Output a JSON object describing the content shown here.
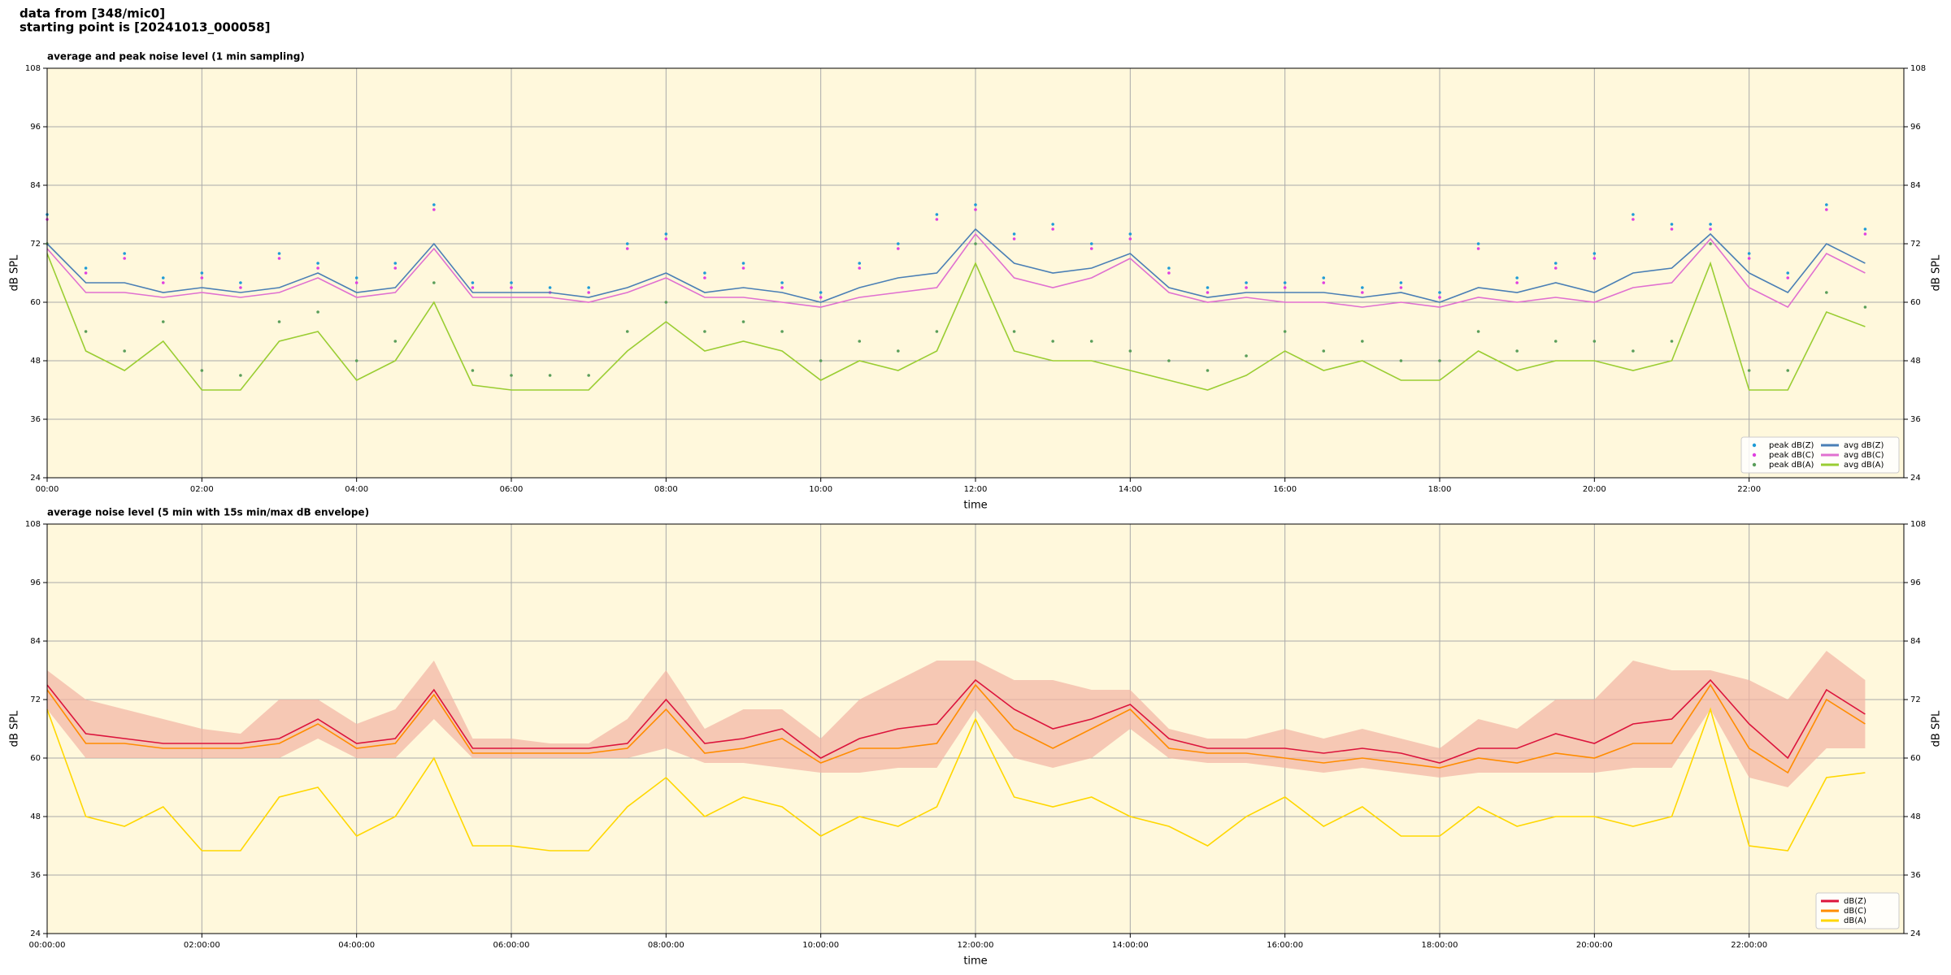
{
  "header": {
    "title_lines": [
      "data from [348/mic0]",
      "starting point is [20241013_000058]"
    ]
  },
  "chart_data": [
    {
      "type": "line",
      "title": "average and peak noise level (1 min sampling)",
      "xlabel": "time",
      "ylabel": "dB SPL",
      "xlim": [
        0,
        24
      ],
      "ylim": [
        24,
        108
      ],
      "yticks": [
        24,
        36,
        48,
        60,
        72,
        84,
        96,
        108
      ],
      "grid": true,
      "legend": "lower right",
      "background": "#fff8dc",
      "xticks": [
        {
          "value": 0,
          "label": "00:00"
        },
        {
          "value": 2,
          "label": "02:00"
        },
        {
          "value": 4,
          "label": "04:00"
        },
        {
          "value": 6,
          "label": "06:00"
        },
        {
          "value": 8,
          "label": "08:00"
        },
        {
          "value": 10,
          "label": "10:00"
        },
        {
          "value": 12,
          "label": "12:00"
        },
        {
          "value": 14,
          "label": "14:00"
        },
        {
          "value": 16,
          "label": "16:00"
        },
        {
          "value": 18,
          "label": "18:00"
        },
        {
          "value": 20,
          "label": "20:00"
        },
        {
          "value": 22,
          "label": "22:00"
        }
      ],
      "x": [
        0,
        0.5,
        1,
        1.5,
        2,
        2.5,
        3,
        3.5,
        4,
        4.5,
        5,
        5.5,
        6,
        6.5,
        7,
        7.5,
        8,
        8.5,
        9,
        9.5,
        10,
        10.5,
        11,
        11.5,
        12,
        12.5,
        13,
        13.5,
        14,
        14.5,
        15,
        15.5,
        16,
        16.5,
        17,
        17.5,
        18,
        18.5,
        19,
        19.5,
        20,
        20.5,
        21,
        21.5,
        22,
        22.5,
        23,
        23.5
      ],
      "series": [
        {
          "name": "peak dB(Z)",
          "kind": "scatter",
          "color": "#1f9bd6",
          "values": [
            78,
            67,
            70,
            65,
            66,
            64,
            70,
            68,
            65,
            68,
            80,
            64,
            64,
            63,
            63,
            72,
            74,
            66,
            68,
            64,
            62,
            68,
            72,
            78,
            80,
            74,
            76,
            72,
            74,
            67,
            63,
            64,
            64,
            65,
            63,
            64,
            62,
            72,
            65,
            68,
            70,
            78,
            76,
            76,
            70,
            66,
            80,
            75
          ]
        },
        {
          "name": "peak dB(C)",
          "kind": "scatter",
          "color": "#e040e0",
          "values": [
            77,
            66,
            69,
            64,
            65,
            63,
            69,
            67,
            64,
            67,
            79,
            63,
            63,
            62,
            62,
            71,
            73,
            65,
            67,
            63,
            61,
            67,
            71,
            77,
            79,
            73,
            75,
            71,
            73,
            66,
            62,
            63,
            63,
            64,
            62,
            63,
            61,
            71,
            64,
            67,
            69,
            77,
            75,
            75,
            69,
            65,
            79,
            74
          ]
        },
        {
          "name": "peak dB(A)",
          "kind": "scatter",
          "color": "#5a9e5a",
          "values": [
            72,
            54,
            50,
            56,
            46,
            45,
            56,
            58,
            48,
            52,
            64,
            46,
            45,
            45,
            45,
            54,
            60,
            54,
            56,
            54,
            48,
            52,
            50,
            54,
            72,
            54,
            52,
            52,
            50,
            48,
            46,
            49,
            54,
            50,
            52,
            48,
            48,
            54,
            50,
            52,
            52,
            50,
            52,
            72,
            46,
            46,
            62,
            59
          ]
        },
        {
          "name": "avg dB(Z)",
          "kind": "line",
          "color": "#4a7fb5",
          "values": [
            72,
            64,
            64,
            62,
            63,
            62,
            63,
            66,
            62,
            63,
            72,
            62,
            62,
            62,
            61,
            63,
            66,
            62,
            63,
            62,
            60,
            63,
            65,
            66,
            75,
            68,
            66,
            67,
            70,
            63,
            61,
            62,
            62,
            62,
            61,
            62,
            60,
            63,
            62,
            64,
            62,
            66,
            67,
            74,
            66,
            62,
            72,
            68
          ]
        },
        {
          "name": "avg dB(C)",
          "kind": "line",
          "color": "#e070d0",
          "values": [
            71,
            62,
            62,
            61,
            62,
            61,
            62,
            65,
            61,
            62,
            71,
            61,
            61,
            61,
            60,
            62,
            65,
            61,
            61,
            60,
            59,
            61,
            62,
            63,
            74,
            65,
            63,
            65,
            69,
            62,
            60,
            61,
            60,
            60,
            59,
            60,
            59,
            61,
            60,
            61,
            60,
            63,
            64,
            73,
            63,
            59,
            70,
            66
          ]
        },
        {
          "name": "avg dB(A)",
          "kind": "line",
          "color": "#9acd32",
          "values": [
            70,
            50,
            46,
            52,
            42,
            42,
            52,
            54,
            44,
            48,
            60,
            43,
            42,
            42,
            42,
            50,
            56,
            50,
            52,
            50,
            44,
            48,
            46,
            50,
            68,
            50,
            48,
            48,
            46,
            44,
            42,
            45,
            50,
            46,
            48,
            44,
            44,
            50,
            46,
            48,
            48,
            46,
            48,
            68,
            42,
            42,
            58,
            55
          ]
        }
      ]
    },
    {
      "type": "line",
      "title": "average noise level (5 min with 15s min/max dB envelope)",
      "xlabel": "time",
      "ylabel": "dB SPL",
      "xlim": [
        0,
        24
      ],
      "ylim": [
        24,
        108
      ],
      "yticks": [
        24,
        36,
        48,
        60,
        72,
        84,
        96,
        108
      ],
      "grid": true,
      "legend": "lower right",
      "background": "#fff8dc",
      "xticks": [
        {
          "value": 0,
          "label": "00:00:00"
        },
        {
          "value": 2,
          "label": "02:00:00"
        },
        {
          "value": 4,
          "label": "04:00:00"
        },
        {
          "value": 6,
          "label": "06:00:00"
        },
        {
          "value": 8,
          "label": "08:00:00"
        },
        {
          "value": 10,
          "label": "10:00:00"
        },
        {
          "value": 12,
          "label": "12:00:00"
        },
        {
          "value": 14,
          "label": "14:00:00"
        },
        {
          "value": 16,
          "label": "16:00:00"
        },
        {
          "value": 18,
          "label": "18:00:00"
        },
        {
          "value": 20,
          "label": "20:00:00"
        },
        {
          "value": 22,
          "label": "22:00:00"
        }
      ],
      "x": [
        0,
        0.5,
        1,
        1.5,
        2,
        2.5,
        3,
        3.5,
        4,
        4.5,
        5,
        5.5,
        6,
        6.5,
        7,
        7.5,
        8,
        8.5,
        9,
        9.5,
        10,
        10.5,
        11,
        11.5,
        12,
        12.5,
        13,
        13.5,
        14,
        14.5,
        15,
        15.5,
        16,
        16.5,
        17,
        17.5,
        18,
        18.5,
        19,
        19.5,
        20,
        20.5,
        21,
        21.5,
        22,
        22.5,
        23,
        23.5
      ],
      "series": [
        {
          "name": "dB(Z)",
          "kind": "line",
          "color": "#dc143c",
          "envelope_color": "#f2b3a3",
          "values": [
            75,
            65,
            64,
            63,
            63,
            63,
            64,
            68,
            63,
            64,
            74,
            62,
            62,
            62,
            62,
            63,
            72,
            63,
            64,
            66,
            60,
            64,
            66,
            67,
            76,
            70,
            66,
            68,
            71,
            64,
            62,
            62,
            62,
            61,
            62,
            61,
            59,
            62,
            62,
            65,
            63,
            67,
            68,
            76,
            67,
            60,
            74,
            69
          ],
          "max": [
            78,
            72,
            70,
            68,
            66,
            65,
            72,
            72,
            67,
            70,
            80,
            64,
            64,
            63,
            63,
            68,
            78,
            66,
            70,
            70,
            64,
            72,
            76,
            80,
            80,
            76,
            76,
            74,
            74,
            66,
            64,
            64,
            66,
            64,
            66,
            64,
            62,
            68,
            66,
            72,
            72,
            80,
            78,
            78,
            76,
            72,
            82,
            76
          ],
          "min": [
            70,
            60,
            60,
            60,
            60,
            60,
            60,
            64,
            60,
            60,
            68,
            60,
            60,
            60,
            60,
            60,
            62,
            59,
            59,
            58,
            57,
            57,
            58,
            58,
            70,
            60,
            58,
            60,
            66,
            60,
            59,
            59,
            58,
            57,
            58,
            57,
            56,
            57,
            57,
            57,
            57,
            58,
            58,
            70,
            56,
            54,
            62,
            62
          ]
        },
        {
          "name": "dB(C)",
          "kind": "line",
          "color": "#ff8c00",
          "values": [
            74,
            63,
            63,
            62,
            62,
            62,
            63,
            67,
            62,
            63,
            73,
            61,
            61,
            61,
            61,
            62,
            70,
            61,
            62,
            64,
            59,
            62,
            62,
            63,
            75,
            66,
            62,
            66,
            70,
            62,
            61,
            61,
            60,
            59,
            60,
            59,
            58,
            60,
            59,
            61,
            60,
            63,
            63,
            75,
            62,
            57,
            72,
            67
          ]
        },
        {
          "name": "dB(A)",
          "kind": "line",
          "color": "#ffd700",
          "values": [
            70,
            48,
            46,
            50,
            41,
            41,
            52,
            54,
            44,
            48,
            60,
            42,
            42,
            41,
            41,
            50,
            56,
            48,
            52,
            50,
            44,
            48,
            46,
            50,
            68,
            52,
            50,
            52,
            48,
            46,
            42,
            48,
            52,
            46,
            50,
            44,
            44,
            50,
            46,
            48,
            48,
            46,
            48,
            70,
            42,
            41,
            56,
            57
          ]
        }
      ]
    }
  ]
}
